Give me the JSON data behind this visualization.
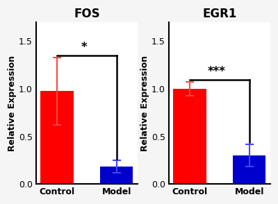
{
  "charts": [
    {
      "title": "FOS",
      "categories": [
        "Control",
        "Model"
      ],
      "values": [
        0.975,
        0.18
      ],
      "errors": [
        0.355,
        0.065
      ],
      "bar_colors": [
        "#ff0000",
        "#0000cd"
      ],
      "error_colors": [
        "#ff4444",
        "#4444ff"
      ],
      "significance": "*",
      "ylim": [
        0,
        1.7
      ],
      "yticks": [
        0.0,
        0.5,
        1.0,
        1.5
      ],
      "ylabel": "Relative Expression"
    },
    {
      "title": "EGR1",
      "categories": [
        "Control",
        "Model"
      ],
      "values": [
        1.0,
        0.3
      ],
      "errors": [
        0.075,
        0.115
      ],
      "bar_colors": [
        "#ff0000",
        "#0000cd"
      ],
      "error_colors": [
        "#ff4444",
        "#4444ff"
      ],
      "significance": "***",
      "ylim": [
        0,
        1.7
      ],
      "yticks": [
        0.0,
        0.5,
        1.0,
        1.5
      ],
      "ylabel": "Relative Expression"
    }
  ],
  "fig_facecolor": "#f5f5f5",
  "ax_facecolor": "#ffffff",
  "title_fontsize": 12,
  "label_fontsize": 9,
  "tick_fontsize": 9,
  "bar_width": 0.55,
  "sig_line_color": "#000000",
  "sig_fontsize": 12,
  "border_color": "#cccccc"
}
